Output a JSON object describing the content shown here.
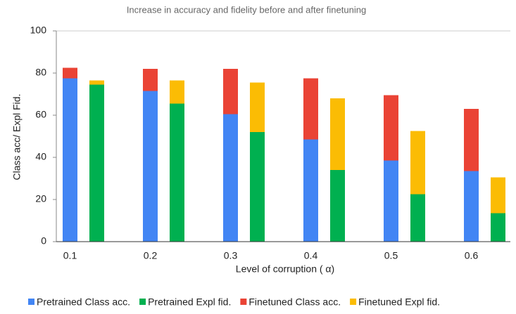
{
  "chart_data": {
    "type": "bar",
    "title": "Increase in accuracy and fidelity before and after finetuning",
    "x_label": "Level of corruption ( α)",
    "y_label": "Class acc/ Expl Fid.",
    "categories": [
      "0.1",
      "0.2",
      "0.3",
      "0.4",
      "0.5",
      "0.6"
    ],
    "series": [
      {
        "name": "Pretrained Class acc.",
        "color": "#4285f4",
        "values": [
          77.5,
          71.5,
          60.5,
          48.5,
          38.5,
          33.5
        ]
      },
      {
        "name": "Pretrained Expl fid.",
        "color": "#00b050",
        "values": [
          74.5,
          65.5,
          52,
          34,
          22.5,
          13.5
        ]
      },
      {
        "name": "Finetuned Class acc.",
        "color": "#ea4335",
        "values": [
          5,
          10.5,
          21.5,
          29,
          31,
          29.5
        ]
      },
      {
        "name": "Finetuned Expl fid.",
        "color": "#fbbc04",
        "values": [
          2,
          11,
          23.5,
          34,
          30,
          17
        ]
      }
    ],
    "ylim": [
      0,
      100
    ],
    "yticks": [
      0,
      20,
      40,
      60,
      80,
      100
    ],
    "legend": "bottom"
  }
}
